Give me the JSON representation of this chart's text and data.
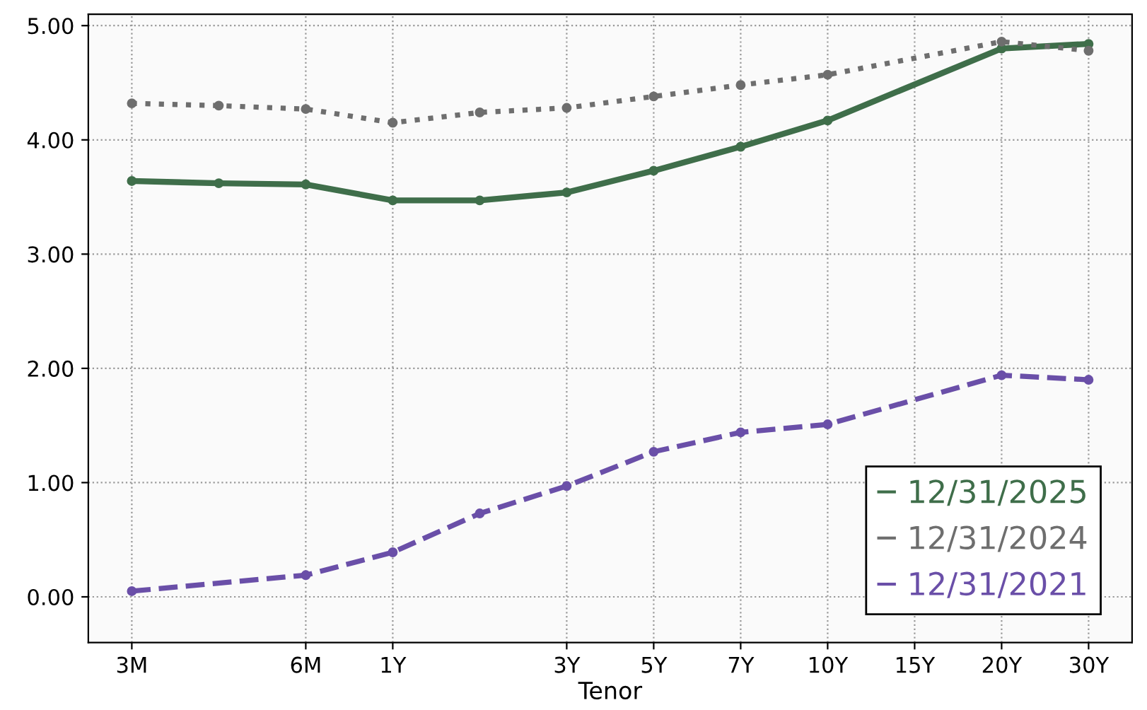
{
  "chart_data": {
    "type": "line",
    "xlabel": "Tenor",
    "categories": [
      "3M",
      null,
      "6M",
      "1Y",
      null,
      "3Y",
      "5Y",
      "7Y",
      "10Y",
      "15Y",
      "20Y",
      "30Y"
    ],
    "ylim": [
      -0.4,
      5.1
    ],
    "yticks": [
      {
        "value": 0,
        "label": "0.00"
      },
      {
        "value": 1,
        "label": "1.00"
      },
      {
        "value": 2,
        "label": "2.00"
      },
      {
        "value": 3,
        "label": "3.00"
      },
      {
        "value": 4,
        "label": "4.00"
      },
      {
        "value": 5,
        "label": "5.00"
      }
    ],
    "grid": true,
    "legend": "bottom right",
    "marker": "circle",
    "series": [
      {
        "name": "12/31/2025",
        "color": "#3f6e4a",
        "line_style": "solid",
        "values": [
          3.64,
          3.62,
          3.61,
          3.47,
          3.47,
          3.54,
          3.73,
          3.94,
          4.17,
          null,
          4.8,
          4.84
        ]
      },
      {
        "name": "12/31/2024",
        "color": "#6e6e6e",
        "line_style": "dotted",
        "values": [
          4.32,
          4.3,
          4.27,
          4.15,
          4.24,
          4.28,
          4.38,
          4.48,
          4.57,
          null,
          4.86,
          4.78
        ]
      },
      {
        "name": "12/31/2021",
        "color": "#6a4fa8",
        "line_style": "dashed",
        "values": [
          0.05,
          null,
          0.19,
          0.39,
          0.73,
          0.97,
          1.27,
          1.44,
          1.51,
          null,
          1.94,
          1.9
        ]
      }
    ]
  }
}
